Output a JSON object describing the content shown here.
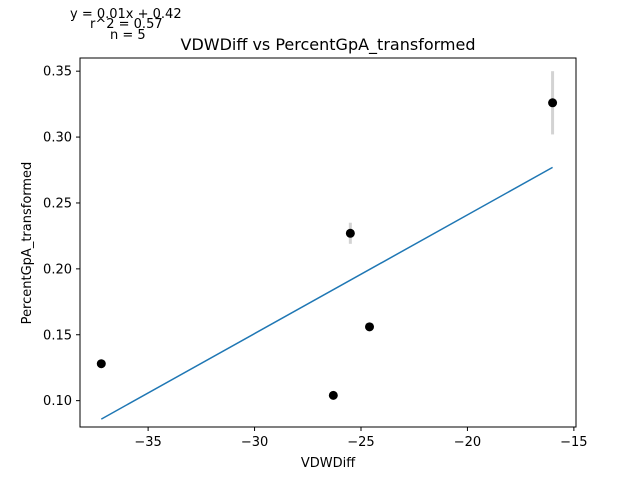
{
  "chart_data": {
    "type": "scatter",
    "title": "VDWDiff vs PercentGpA_transformed",
    "xlabel": "VDWDiff",
    "ylabel": "PercentGpA_transformed",
    "xlim": [
      -38.2,
      -14.9
    ],
    "ylim": [
      0.08,
      0.36
    ],
    "xticks": [
      -35,
      -30,
      -25,
      -20,
      -15
    ],
    "xtick_labels": [
      "−35",
      "−30",
      "−25",
      "−20",
      "−15"
    ],
    "yticks": [
      0.1,
      0.15,
      0.2,
      0.25,
      0.3,
      0.35
    ],
    "ytick_labels": [
      "0.10",
      "0.15",
      "0.20",
      "0.25",
      "0.30",
      "0.35"
    ],
    "grid": false,
    "points": [
      {
        "x": -37.2,
        "y": 0.128,
        "err": 0
      },
      {
        "x": -26.3,
        "y": 0.104,
        "err": 0
      },
      {
        "x": -25.5,
        "y": 0.227,
        "err": 0.008
      },
      {
        "x": -24.6,
        "y": 0.156,
        "err": 0
      },
      {
        "x": -16.0,
        "y": 0.326,
        "err": 0.024
      }
    ],
    "fit_line": {
      "x": [
        -37.2,
        -16.0
      ],
      "y": [
        0.086,
        0.277
      ]
    },
    "annotations": [
      "y = 0.01x + 0.42",
      "r^2 = 0.57",
      "n = 5"
    ],
    "colors": {
      "points": "#000000",
      "fit_line": "#1f77b4",
      "error_bars": "#d3d3d3"
    }
  }
}
